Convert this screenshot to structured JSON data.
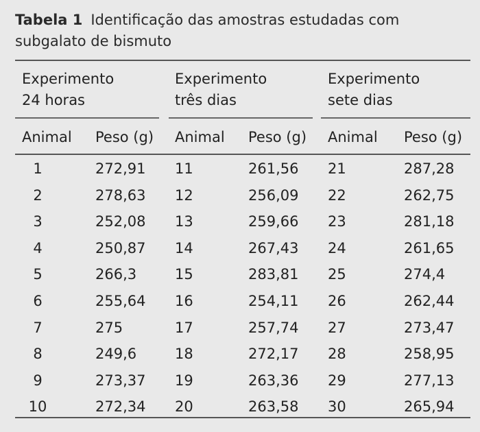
{
  "table": {
    "label": "Tabela 1",
    "title": "Identificação das amostras estudadas com subgalato de bismuto",
    "groups": [
      "Experimento\n24 horas",
      "Experimento\ntrês dias",
      "Experimento\nsete dias"
    ],
    "column_headers": [
      "Animal",
      "Peso (g)",
      "Animal",
      "Peso (g)",
      "Animal",
      "Peso (g)"
    ],
    "rows": [
      [
        "1",
        "272,91",
        "11",
        "261,56",
        "21",
        "287,28"
      ],
      [
        "2",
        "278,63",
        "12",
        "256,09",
        "22",
        "262,75"
      ],
      [
        "3",
        "252,08",
        "13",
        "259,66",
        "23",
        "281,18"
      ],
      [
        "4",
        "250,87",
        "14",
        "267,43",
        "24",
        "261,65"
      ],
      [
        "5",
        "266,3",
        "15",
        "283,81",
        "25",
        "274,4"
      ],
      [
        "6",
        "255,64",
        "16",
        "254,11",
        "26",
        "262,44"
      ],
      [
        "7",
        "275",
        "17",
        "257,74",
        "27",
        "273,47"
      ],
      [
        "8",
        "249,6",
        "18",
        "272,17",
        "28",
        "258,95"
      ],
      [
        "9",
        "273,37",
        "19",
        "263,36",
        "29",
        "277,13"
      ],
      [
        "10",
        "272,34",
        "20",
        "263,58",
        "30",
        "265,94"
      ]
    ]
  }
}
